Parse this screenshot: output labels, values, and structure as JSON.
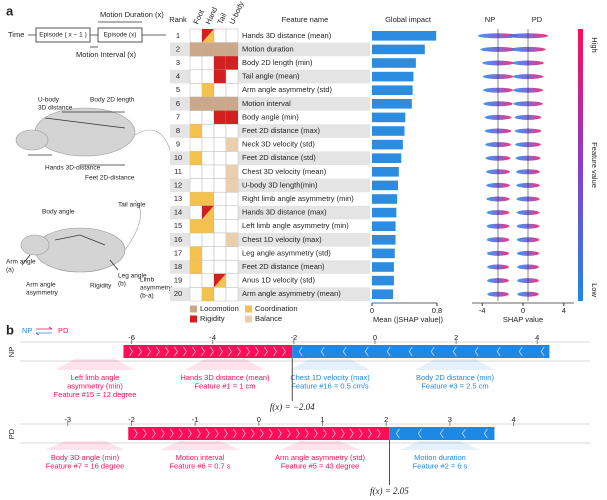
{
  "panel_a": {
    "label": "a",
    "timeline": {
      "time": "Time",
      "prev": "Episode ( x − 1 )",
      "cur": "Episode (x)",
      "duration": "Motion Duration (x)",
      "interval": "Motion Interval (x)"
    },
    "rat_labels": [
      [
        "U-body",
        "3D distance"
      ],
      [
        "Body 2D length"
      ],
      [
        "Hands 3D-distance"
      ],
      [
        "Feet 2D-distance"
      ],
      [
        "Body angle"
      ],
      [
        "Tail angle"
      ],
      [
        "Arm angle",
        "(a)"
      ],
      [
        "Leg angle",
        "(b)"
      ],
      [
        "Arm angle",
        "asymmetry"
      ],
      [
        "Rigidity"
      ],
      [
        "Limb",
        "asymmetry",
        "(b-a)"
      ]
    ],
    "headers": {
      "rank": "Rank",
      "parts": [
        "Foot",
        "Hand",
        "Tail",
        "U-body"
      ],
      "name": "Feature name",
      "impact": "Global impact",
      "np": "NP",
      "pd": "PD"
    },
    "rows": [
      {
        "rank": 1,
        "name": "Hands 3D distance (mean)",
        "parts": [
          null,
          [
            "Rigidity",
            "Coordination"
          ],
          null,
          null
        ],
        "impact": 0.79
      },
      {
        "rank": 2,
        "name": "Motion duration",
        "parts": [
          [
            "Locomotion"
          ],
          [
            "Locomotion"
          ],
          [
            "Locomotion"
          ],
          [
            "Locomotion"
          ]
        ],
        "impact": 0.65
      },
      {
        "rank": 3,
        "name": "Body 2D length (min)",
        "parts": [
          null,
          null,
          [
            "Rigidity"
          ],
          [
            "Rigidity"
          ]
        ],
        "impact": 0.54
      },
      {
        "rank": 4,
        "name": "Tail angle (mean)",
        "parts": [
          null,
          null,
          [
            "Rigidity"
          ],
          null
        ],
        "impact": 0.51
      },
      {
        "rank": 5,
        "name": "Arm angle asymmetry (std)",
        "parts": [
          null,
          [
            "Coordination"
          ],
          null,
          null
        ],
        "impact": 0.5
      },
      {
        "rank": 6,
        "name": "Motion interval",
        "parts": [
          [
            "Locomotion"
          ],
          [
            "Locomotion"
          ],
          [
            "Locomotion"
          ],
          [
            "Locomotion"
          ]
        ],
        "impact": 0.49
      },
      {
        "rank": 7,
        "name": "Body angle (min)",
        "parts": [
          null,
          null,
          [
            "Rigidity"
          ],
          [
            "Rigidity"
          ]
        ],
        "impact": 0.41
      },
      {
        "rank": 8,
        "name": "Feet 2D distance (max)",
        "parts": [
          [
            "Coordination"
          ],
          null,
          null,
          null
        ],
        "impact": 0.4
      },
      {
        "rank": 9,
        "name": "Neck 3D velocity (std)",
        "parts": [
          null,
          null,
          null,
          [
            "Balance"
          ]
        ],
        "impact": 0.38
      },
      {
        "rank": 10,
        "name": "Feet 2D distance (std)",
        "parts": [
          [
            "Coordination"
          ],
          null,
          null,
          null
        ],
        "impact": 0.36
      },
      {
        "rank": 11,
        "name": "Chest 3D velocity (mean)",
        "parts": [
          null,
          null,
          null,
          [
            "Balance"
          ]
        ],
        "impact": 0.33
      },
      {
        "rank": 12,
        "name": "U-body 3D length(min)",
        "parts": [
          null,
          null,
          null,
          [
            "Balance"
          ]
        ],
        "impact": 0.32
      },
      {
        "rank": 13,
        "name": "Right limb angle asymmetry (min)",
        "parts": [
          [
            "Coordination"
          ],
          [
            "Coordination"
          ],
          null,
          null
        ],
        "impact": 0.31
      },
      {
        "rank": 14,
        "name": "Hands 3D distance (max)",
        "parts": [
          null,
          [
            "Rigidity",
            "Coordination"
          ],
          null,
          null
        ],
        "impact": 0.3
      },
      {
        "rank": 15,
        "name": "Left limb angle asymmetry (min)",
        "parts": [
          [
            "Coordination"
          ],
          [
            "Coordination"
          ],
          null,
          null
        ],
        "impact": 0.29
      },
      {
        "rank": 16,
        "name": "Chest 1D velocity (max)",
        "parts": [
          null,
          null,
          null,
          [
            "Balance"
          ]
        ],
        "impact": 0.29
      },
      {
        "rank": 17,
        "name": "Leg angle asymmetry (std)",
        "parts": [
          [
            "Coordination"
          ],
          null,
          null,
          null
        ],
        "impact": 0.28
      },
      {
        "rank": 18,
        "name": "Feet 2D distance (mean)",
        "parts": [
          [
            "Coordination"
          ],
          null,
          null,
          null
        ],
        "impact": 0.27
      },
      {
        "rank": 19,
        "name": "Anus 1D velocity (std)",
        "parts": [
          null,
          null,
          [
            "Rigidity",
            "Coordination"
          ],
          null
        ],
        "impact": 0.27
      },
      {
        "rank": 20,
        "name": "Arm angle asymmetry (mean)",
        "parts": [
          null,
          [
            "Coordination"
          ],
          null,
          null
        ],
        "impact": 0.26
      }
    ],
    "impact_axis": {
      "xlim": [
        0,
        0.8
      ],
      "xticks": [
        0,
        0.8
      ],
      "label": "Mean (|SHAP value|)",
      "color": "#2b8ce0"
    },
    "shap_axis": {
      "xlim": [
        -5,
        5
      ],
      "xticks": [
        -4,
        0,
        4
      ],
      "label": "SHAP value"
    },
    "colorbar": {
      "high": "High",
      "low": "Low",
      "label": "Feature value"
    },
    "categories": [
      {
        "name": "Locomotion",
        "color": "#c9a98a"
      },
      {
        "name": "Coordination",
        "color": "#f2c14e"
      },
      {
        "name": "Rigidity",
        "color": "#d21f1f"
      },
      {
        "name": "Balance",
        "color": "#e8cfae"
      }
    ]
  },
  "panel_b": {
    "label": "b",
    "legend": {
      "np": "NP",
      "pd": "PD"
    },
    "pos_color": "#ff0d57",
    "neg_color": "#1e88e5",
    "plots": [
      {
        "name": "NP",
        "xlim": [
          -8.75,
          5.3
        ],
        "xticks": [
          -6,
          -4,
          -2,
          0,
          2,
          4
        ],
        "low": -6.2,
        "fx": -2.04,
        "high": 4.3,
        "fx_label": "f(x) = −2.04",
        "features": [
          {
            "side": "pos",
            "lines": [
              "Left limb angle",
              "asymmetry (min)",
              "Feature #15 = 12 degree"
            ]
          },
          {
            "side": "pos",
            "lines": [
              "Hands 3D distance (mean)",
              "Feature #1 = 1 cm"
            ]
          },
          {
            "side": "neg",
            "lines": [
              "Chest 1D velocity (max)",
              "Feature #16 = 0.5 cm/s"
            ]
          },
          {
            "side": "neg",
            "lines": [
              "Body 2D distance (min)",
              "Feature #3 = 2.5 cm"
            ]
          }
        ]
      },
      {
        "name": "PD",
        "xlim": [
          -3.75,
          5.2
        ],
        "xticks": [
          -3,
          -2,
          -1,
          0,
          1,
          2,
          3,
          4
        ],
        "low": -2.05,
        "fx": 2.05,
        "high": 3.7,
        "fx_label": "f(x) = 2.05",
        "features": [
          {
            "side": "pos",
            "lines": [
              "Body 3D angle (min)",
              "Feature #7 = 16 degree"
            ]
          },
          {
            "side": "pos",
            "lines": [
              "Motion interval",
              "Feature #6 = 0.7 s"
            ]
          },
          {
            "side": "pos",
            "lines": [
              "Arm angle asymmetry (std)",
              "Feature #5 = 43 degree"
            ]
          },
          {
            "side": "neg",
            "lines": [
              "Motion duration",
              "Feature #2 = 6 s"
            ]
          }
        ]
      }
    ]
  }
}
